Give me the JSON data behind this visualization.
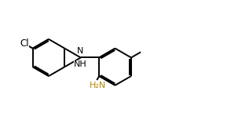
{
  "background": "#ffffff",
  "bond_color": "#000000",
  "nh2_color": "#b8860b",
  "line_width": 1.4,
  "dbo": 0.012,
  "figsize": [
    3.03,
    1.53
  ],
  "dpi": 100,
  "xlim": [
    0.0,
    1.0
  ],
  "ylim": [
    0.0,
    1.0
  ],
  "font_size": 8.0
}
